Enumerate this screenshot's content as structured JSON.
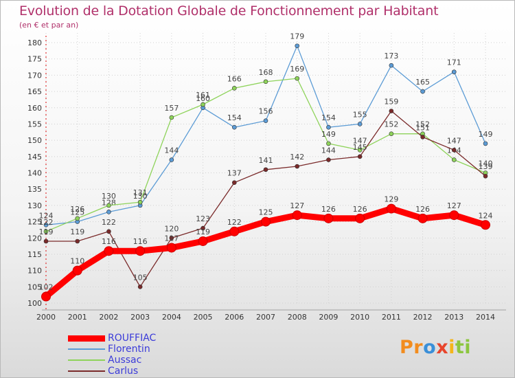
{
  "header": {
    "title": "Evolution de la Dotation Globale de Fonctionnement par Habitant",
    "subtitle": "(en € et par an)"
  },
  "logo": {
    "text": "Proxiti",
    "letters": [
      {
        "ch": "P",
        "color": "#f28c1e"
      },
      {
        "ch": "r",
        "color": "#f28c1e"
      },
      {
        "ch": "o",
        "color": "#3a8fd8"
      },
      {
        "ch": "x",
        "color": "#e8452c"
      },
      {
        "ch": "i",
        "color": "#f4b51a"
      },
      {
        "ch": "t",
        "color": "#8cc63f"
      },
      {
        "ch": "i",
        "color": "#8cc63f"
      }
    ]
  },
  "chart_data": {
    "type": "line",
    "title": "Evolution de la Dotation Globale de Fonctionnement par Habitant",
    "subtitle": "(en € et par an)",
    "x": [
      2000,
      2001,
      2002,
      2003,
      2004,
      2005,
      2006,
      2007,
      2008,
      2009,
      2010,
      2011,
      2012,
      2013,
      2014
    ],
    "ylim": [
      100,
      180
    ],
    "yticks": [
      100,
      105,
      110,
      115,
      120,
      125,
      130,
      135,
      140,
      145,
      150,
      155,
      160,
      165,
      170,
      175,
      180
    ],
    "grid": true,
    "legend_position": "bottom-left",
    "series": [
      {
        "name": "ROUFFIAC",
        "color": "#ff0000",
        "values": [
          102,
          110,
          116,
          116,
          117,
          119,
          122,
          125,
          127,
          126,
          126,
          129,
          126,
          127,
          124
        ]
      },
      {
        "name": "Florentin",
        "color": "#5b9bd5",
        "values": [
          124,
          125,
          128,
          130,
          144,
          160,
          154,
          156,
          179,
          154,
          155,
          173,
          165,
          171,
          149
        ]
      },
      {
        "name": "Aussac",
        "color": "#8ed35a",
        "values": [
          122,
          126,
          130,
          131,
          157,
          161,
          166,
          168,
          169,
          149,
          147,
          152,
          152,
          144,
          140
        ]
      },
      {
        "name": "Carlus",
        "color": "#7a2a2a",
        "values": [
          119,
          119,
          122,
          105,
          120,
          123,
          137,
          141,
          142,
          144,
          145,
          159,
          151,
          147,
          139
        ]
      }
    ]
  }
}
